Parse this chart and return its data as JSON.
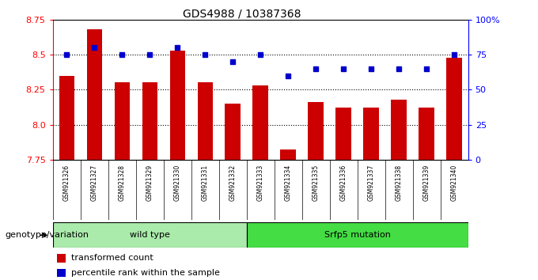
{
  "title": "GDS4988 / 10387368",
  "samples": [
    "GSM921326",
    "GSM921327",
    "GSM921328",
    "GSM921329",
    "GSM921330",
    "GSM921331",
    "GSM921332",
    "GSM921333",
    "GSM921334",
    "GSM921335",
    "GSM921336",
    "GSM921337",
    "GSM921338",
    "GSM921339",
    "GSM921340"
  ],
  "transformed_count": [
    8.35,
    8.68,
    8.3,
    8.3,
    8.53,
    8.3,
    8.15,
    8.28,
    7.82,
    8.16,
    8.12,
    8.12,
    8.18,
    8.12,
    8.48
  ],
  "percentile_rank": [
    75,
    80,
    75,
    75,
    80,
    75,
    70,
    75,
    60,
    65,
    65,
    65,
    65,
    65,
    75
  ],
  "ylim_left": [
    7.75,
    8.75
  ],
  "ylim_right": [
    0,
    100
  ],
  "yticks_left": [
    7.75,
    8.0,
    8.25,
    8.5,
    8.75
  ],
  "yticks_right": [
    0,
    25,
    50,
    75,
    100
  ],
  "ytick_labels_right": [
    "0",
    "25",
    "50",
    "75",
    "100%"
  ],
  "bar_color": "#cc0000",
  "dot_color": "#0000cc",
  "groups": [
    {
      "label": "wild type",
      "start": 0,
      "end": 6,
      "color": "#aaeaaa"
    },
    {
      "label": "Srfp5 mutation",
      "start": 7,
      "end": 14,
      "color": "#44dd44"
    }
  ],
  "legend_items": [
    {
      "color": "#cc0000",
      "label": "transformed count"
    },
    {
      "color": "#0000cc",
      "label": "percentile rank within the sample"
    }
  ],
  "group_label": "genotype/variation",
  "background_color": "#ffffff",
  "tick_area_bg": "#bbbbbb"
}
